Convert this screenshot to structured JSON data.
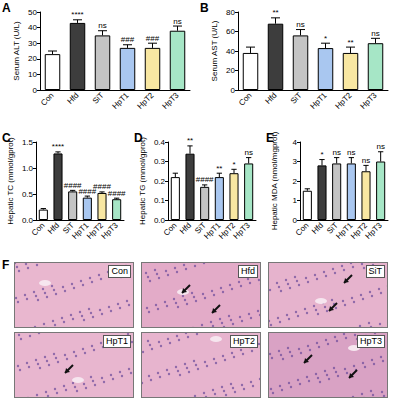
{
  "chart_data": [
    {
      "type": "bar",
      "panel": "A",
      "y_label": "Serum ALT (U/L)",
      "categories": [
        "Con",
        "Hfd",
        "SiT",
        "HpT1",
        "HpT2",
        "HpT3"
      ],
      "values": [
        23,
        43,
        35,
        27,
        27,
        38
      ],
      "errors": [
        2,
        2,
        3,
        2,
        3,
        3
      ],
      "annotations": [
        null,
        "****",
        "ns",
        "###",
        "###",
        "ns"
      ],
      "colors": [
        "#ffffff",
        "#3d3d3d",
        "#c4c4c4",
        "#a9c7f0",
        "#f8e7a2",
        "#a6e6c6"
      ],
      "ylim": [
        0,
        50
      ],
      "yticks": [
        0,
        10,
        20,
        30,
        40,
        50
      ]
    },
    {
      "type": "bar",
      "panel": "B",
      "y_label": "Serum AST (U/L)",
      "categories": [
        "Con",
        "Hfd",
        "SiT",
        "HpT1",
        "HpT2",
        "HpT3"
      ],
      "values": [
        38,
        68,
        56,
        43,
        38,
        48
      ],
      "errors": [
        6,
        6,
        6,
        5,
        6,
        5
      ],
      "annotations": [
        null,
        "**",
        "ns",
        "*",
        "**",
        "ns"
      ],
      "colors": [
        "#ffffff",
        "#3d3d3d",
        "#c4c4c4",
        "#a9c7f0",
        "#f8e7a2",
        "#a6e6c6"
      ],
      "ylim": [
        0,
        80
      ],
      "yticks": [
        0,
        20,
        40,
        60,
        80
      ]
    },
    {
      "type": "bar",
      "panel": "C",
      "y_label": "Hepatic TC (mmol/gprot)",
      "categories": [
        "Con",
        "Hfd",
        "SiT",
        "HpT1",
        "HpT2",
        "HpT3"
      ],
      "values": [
        0.2,
        1.28,
        0.55,
        0.43,
        0.52,
        0.4
      ],
      "errors": [
        0.02,
        0.03,
        0.02,
        0.03,
        0.02,
        0.02
      ],
      "annotations": [
        null,
        "****",
        "####",
        "####",
        "####",
        "####"
      ],
      "colors": [
        "#ffffff",
        "#3d3d3d",
        "#c4c4c4",
        "#a9c7f0",
        "#f8e7a2",
        "#a6e6c6"
      ],
      "ylim": [
        0,
        1.5
      ],
      "yticks": [
        {
          "value": 0,
          "label": "0.0"
        },
        0.5,
        {
          "value": 1,
          "label": "1.0"
        },
        1.5
      ]
    },
    {
      "type": "bar",
      "panel": "D",
      "y_label": "Hepatic TG (mmol/gprot)",
      "categories": [
        "Con",
        "Hfd",
        "SiT",
        "HpT1",
        "HpT2",
        "HpT3"
      ],
      "values": [
        0.22,
        0.34,
        0.17,
        0.22,
        0.24,
        0.29
      ],
      "errors": [
        0.02,
        0.04,
        0.01,
        0.02,
        0.02,
        0.03
      ],
      "annotations": [
        null,
        "**",
        "####",
        "**",
        "*",
        "ns"
      ],
      "colors": [
        "#ffffff",
        "#3d3d3d",
        "#c4c4c4",
        "#a9c7f0",
        "#f8e7a2",
        "#a6e6c6"
      ],
      "ylim": [
        0,
        0.4
      ],
      "yticks": [
        {
          "value": 0,
          "label": "0.0"
        },
        0.1,
        0.2,
        0.3,
        0.4
      ]
    },
    {
      "type": "bar",
      "panel": "E",
      "y_label": "Hepatic MDA (nmol/mgprot)",
      "categories": [
        "Con",
        "Hfd",
        "SiT",
        "HpT1",
        "HpT2",
        "HpT3"
      ],
      "values": [
        1.5,
        2.8,
        2.9,
        2.9,
        2.5,
        3.0
      ],
      "errors": [
        0.1,
        0.3,
        0.3,
        0.3,
        0.3,
        0.5
      ],
      "annotations": [
        null,
        "*",
        "ns",
        "ns",
        "ns",
        "ns"
      ],
      "colors": [
        "#ffffff",
        "#3d3d3d",
        "#c4c4c4",
        "#a9c7f0",
        "#f8e7a2",
        "#a6e6c6"
      ],
      "ylim": [
        0,
        4
      ],
      "yticks": [
        0,
        1,
        2,
        3,
        4
      ]
    }
  ],
  "histology": {
    "panel": "F",
    "images": [
      "Con",
      "Hfd",
      "SiT",
      "HpT1",
      "HpT2",
      "HpT3"
    ]
  }
}
